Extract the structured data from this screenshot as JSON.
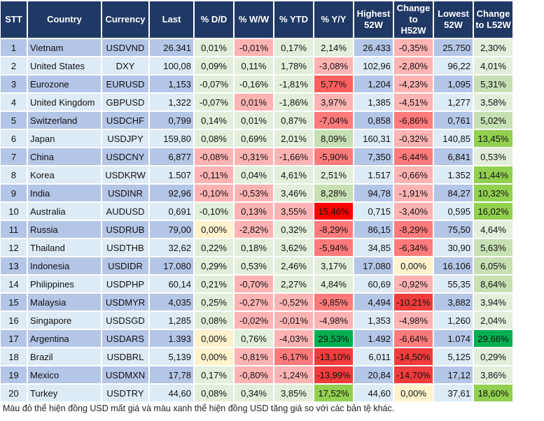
{
  "headers": [
    "STT",
    "Country",
    "Currency",
    "Last",
    "% D/D",
    "% W/W",
    "% YTD",
    "% Y/Y",
    "Highest 52W",
    "Change to H52W",
    "Lowest 52W",
    "Change to L52W"
  ],
  "colors": {
    "header": "#203864",
    "row_odd": "#b4c6e7",
    "row_even": "#ddebf7",
    "g1": "#e2efda",
    "g2": "#c6e0b4",
    "g3": "#92d050",
    "g4": "#00b050",
    "r1": "#ffb3b3",
    "r2": "#ff7b7b",
    "r3": "#f03c3c",
    "r5": "#ff5f5f",
    "r4": "#ff0000",
    "y": "#fff2cc"
  },
  "rows": [
    [
      "1",
      "Vietnam",
      "USDVND",
      "26.341",
      [
        "0,01%",
        "g1"
      ],
      [
        "-0,01%",
        "r1"
      ],
      [
        "0,17%",
        "g1"
      ],
      [
        "2,14%",
        "g1"
      ],
      "26.433",
      [
        "-0,35%",
        "r1"
      ],
      "25.750",
      [
        "2,30%",
        "g1"
      ]
    ],
    [
      "2",
      "United States",
      "DXY",
      "100,08",
      [
        "0,09%",
        "g1"
      ],
      [
        "0,11%",
        "g1"
      ],
      [
        "1,78%",
        "g1"
      ],
      [
        "-3,08%",
        "r1"
      ],
      "102,96",
      [
        "-2,80%",
        "r1"
      ],
      "96,22",
      [
        "4,01%",
        "g1"
      ]
    ],
    [
      "3",
      "Eurozone",
      "EURUSD",
      "1,153",
      [
        "-0,07%",
        "g1"
      ],
      [
        "-0,16%",
        "g1"
      ],
      [
        "-1,81%",
        "g1"
      ],
      [
        "5,77%",
        "r5"
      ],
      "1,204",
      [
        "-4,23%",
        "r1"
      ],
      "1,095",
      [
        "5,31%",
        "g2"
      ]
    ],
    [
      "4",
      "United Kingdom",
      "GBPUSD",
      "1,322",
      [
        "-0,07%",
        "g1"
      ],
      [
        "0,01%",
        "r1"
      ],
      [
        "-1,86%",
        "g1"
      ],
      [
        "3,97%",
        "r1"
      ],
      "1,385",
      [
        "-4,51%",
        "r1"
      ],
      "1,277",
      [
        "3,58%",
        "g1"
      ]
    ],
    [
      "5",
      "Switzerland",
      "USDCHF",
      "0,799",
      [
        "0,14%",
        "g1"
      ],
      [
        "0,01%",
        "g1"
      ],
      [
        "0,87%",
        "g1"
      ],
      [
        "-7,04%",
        "r2"
      ],
      "0,858",
      [
        "-6,86%",
        "r2"
      ],
      "0,761",
      [
        "5,02%",
        "g2"
      ]
    ],
    [
      "6",
      "Japan",
      "USDJPY",
      "159,80",
      [
        "0,08%",
        "g1"
      ],
      [
        "0,69%",
        "g1"
      ],
      [
        "2,01%",
        "g1"
      ],
      [
        "8,09%",
        "g2"
      ],
      "160,31",
      [
        "-0,32%",
        "r1"
      ],
      "140,85",
      [
        "13,45%",
        "g3"
      ]
    ],
    [
      "7",
      "China",
      "USDCNY",
      "6,877",
      [
        "-0,08%",
        "r1"
      ],
      [
        "-0,31%",
        "r1"
      ],
      [
        "-1,66%",
        "r1"
      ],
      [
        "-5,90%",
        "r2"
      ],
      "7,350",
      [
        "-6,44%",
        "r2"
      ],
      "6,841",
      [
        "0,53%",
        "g1"
      ]
    ],
    [
      "8",
      "Korea",
      "USDKRW",
      "1.507",
      [
        "-0,11%",
        "r1"
      ],
      [
        "0,04%",
        "g1"
      ],
      [
        "4,61%",
        "g1"
      ],
      [
        "2,51%",
        "g1"
      ],
      "1.517",
      [
        "-0,66%",
        "r1"
      ],
      "1.352",
      [
        "11,44%",
        "g3"
      ]
    ],
    [
      "9",
      "India",
      "USDINR",
      "92,96",
      [
        "-0,10%",
        "r1"
      ],
      [
        "-0,53%",
        "r1"
      ],
      [
        "3,46%",
        "g1"
      ],
      [
        "8,28%",
        "g2"
      ],
      "94,78",
      [
        "-1,91%",
        "r1"
      ],
      "84,27",
      [
        "10,32%",
        "g3"
      ]
    ],
    [
      "10",
      "Australia",
      "AUDUSD",
      "0,691",
      [
        "-0,10%",
        "g1"
      ],
      [
        "0,13%",
        "r1"
      ],
      [
        "3,55%",
        "r1"
      ],
      [
        "15,46%",
        "r4"
      ],
      "0,715",
      [
        "-3,40%",
        "r1"
      ],
      "0,595",
      [
        "16,02%",
        "g3"
      ]
    ],
    [
      "11",
      "Russia",
      "USDRUB",
      "79,00",
      [
        "0,00%",
        "y"
      ],
      [
        "-2,82%",
        "r1"
      ],
      [
        "0,32%",
        "g1"
      ],
      [
        "-8,29%",
        "r2"
      ],
      "86,15",
      [
        "-8,29%",
        "r2"
      ],
      "75,50",
      [
        "4,64%",
        "g1"
      ]
    ],
    [
      "12",
      "Thailand",
      "USDTHB",
      "32,62",
      [
        "0,22%",
        "g1"
      ],
      [
        "0,18%",
        "g1"
      ],
      [
        "3,62%",
        "g1"
      ],
      [
        "-5,94%",
        "r2"
      ],
      "34,85",
      [
        "-6,34%",
        "r2"
      ],
      "30,90",
      [
        "5,63%",
        "g2"
      ]
    ],
    [
      "13",
      "Indonesia",
      "USDIDR",
      "17.080",
      [
        "0,29%",
        "g1"
      ],
      [
        "0,53%",
        "g1"
      ],
      [
        "2,46%",
        "g1"
      ],
      [
        "3,17%",
        "g1"
      ],
      "17.080",
      [
        "0,00%",
        "y"
      ],
      "16.106",
      [
        "6,05%",
        "g2"
      ]
    ],
    [
      "14",
      "Philippines",
      "USDPHP",
      "60,14",
      [
        "0,21%",
        "g1"
      ],
      [
        "-0,70%",
        "r1"
      ],
      [
        "2,27%",
        "g1"
      ],
      [
        "4,84%",
        "g1"
      ],
      "60,69",
      [
        "-0,92%",
        "r1"
      ],
      "55,35",
      [
        "8,64%",
        "g2"
      ]
    ],
    [
      "15",
      "Malaysia",
      "USDMYR",
      "4,035",
      [
        "0,25%",
        "g1"
      ],
      [
        "-0,27%",
        "r1"
      ],
      [
        "-0,52%",
        "r1"
      ],
      [
        "-9,85%",
        "r2"
      ],
      "4,494",
      [
        "-10,21%",
        "r3"
      ],
      "3,882",
      [
        "3,94%",
        "g1"
      ]
    ],
    [
      "16",
      "Singapore",
      "USDSGD",
      "1,285",
      [
        "0,08%",
        "g1"
      ],
      [
        "-0,02%",
        "r1"
      ],
      [
        "-0,01%",
        "r1"
      ],
      [
        "-4,98%",
        "r1"
      ],
      "1,353",
      [
        "-4,98%",
        "r1"
      ],
      "1,260",
      [
        "2,04%",
        "g1"
      ]
    ],
    [
      "17",
      "Argentina",
      "USDARS",
      "1.393",
      [
        "0,00%",
        "y"
      ],
      [
        "0,76%",
        "g1"
      ],
      [
        "-4,03%",
        "r1"
      ],
      [
        "29,53%",
        "g4"
      ],
      "1.492",
      [
        "-6,64%",
        "r2"
      ],
      "1.074",
      [
        "29,66%",
        "g4"
      ]
    ],
    [
      "18",
      "Brazil",
      "USDBRL",
      "5,139",
      [
        "0,00%",
        "y"
      ],
      [
        "-0,81%",
        "r1"
      ],
      [
        "-6,17%",
        "r2"
      ],
      [
        "-13,10%",
        "r3"
      ],
      "6,011",
      [
        "-14,50%",
        "r3"
      ],
      "5,125",
      [
        "0,29%",
        "g1"
      ]
    ],
    [
      "19",
      "Mexico",
      "USDMXN",
      "17,78",
      [
        "0,17%",
        "g1"
      ],
      [
        "-0,80%",
        "r1"
      ],
      [
        "-1,24%",
        "r1"
      ],
      [
        "-13,99%",
        "r3"
      ],
      "20,84",
      [
        "-14,70%",
        "r3"
      ],
      "17,12",
      [
        "3,86%",
        "g1"
      ]
    ],
    [
      "20",
      "Turkey",
      "USDTRY",
      "44,60",
      [
        "0,08%",
        "g1"
      ],
      [
        "0,34%",
        "g1"
      ],
      [
        "3,85%",
        "g1"
      ],
      [
        "17,52%",
        "g3"
      ],
      "44,60",
      [
        "0,00%",
        "y"
      ],
      "37,61",
      [
        "18,60%",
        "g3"
      ]
    ]
  ],
  "footnote": "Màu đỏ thể hiện đồng USD mất giá và màu xanh thể hiện đồng USD tăng giá so với các bản tệ khác."
}
